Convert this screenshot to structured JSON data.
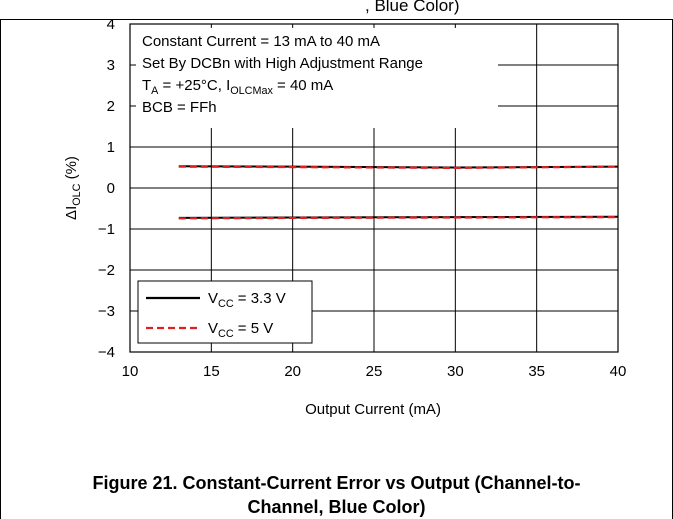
{
  "chart_data": {
    "type": "line",
    "xlabel": "Output Current (mA)",
    "ylabel_main": "ΔI",
    "ylabel_sub": "OLC",
    "ylabel_unit": "(%)",
    "xlim": [
      10,
      40
    ],
    "ylim": [
      -4,
      4
    ],
    "x_ticks": [
      10,
      15,
      20,
      25,
      30,
      35,
      40
    ],
    "y_ticks": [
      4,
      3,
      2,
      1,
      0,
      -1,
      -2,
      -3,
      -4
    ],
    "x_tick_labels": [
      "10",
      "15",
      "20",
      "25",
      "30",
      "35",
      "40"
    ],
    "y_tick_labels": [
      "4",
      "3",
      "2",
      "1",
      "0",
      "−1",
      "−2",
      "−3",
      "−4"
    ],
    "grid": true,
    "legend_position": "bottom-left",
    "annotations": [
      "Constant Current = 13 mA to 40 mA",
      "Set By DCBn with High Adjustment Range",
      {
        "parts": [
          "T",
          "A",
          " = +25°C, I",
          "OLCMax",
          " = 40 mA"
        ]
      },
      "BCB = FFh"
    ],
    "series": [
      {
        "name_parts": [
          "V",
          "CC",
          " = 3.3 V"
        ],
        "color": "#000000",
        "style": "solid",
        "lines": [
          {
            "x": [
              13,
              20,
              30,
              40
            ],
            "y": [
              0.53,
              0.52,
              0.5,
              0.52
            ]
          },
          {
            "x": [
              13,
              20,
              30,
              40
            ],
            "y": [
              -0.73,
              -0.72,
              -0.71,
              -0.7
            ]
          }
        ]
      },
      {
        "name_parts": [
          "V",
          "CC",
          " = 5 V"
        ],
        "color": "#e02020",
        "style": "dashed",
        "lines": [
          {
            "x": [
              13,
              20,
              30,
              40
            ],
            "y": [
              0.52,
              0.51,
              0.49,
              0.52
            ]
          },
          {
            "x": [
              13,
              20,
              30,
              40
            ],
            "y": [
              -0.74,
              -0.73,
              -0.72,
              -0.71
            ]
          }
        ]
      }
    ]
  },
  "caption": {
    "line1": "Figure 21. Constant-Current Error vs Output (Channel-to-",
    "line2": "Channel, Blue Color)"
  },
  "header_fragment": ", Blue Color)"
}
